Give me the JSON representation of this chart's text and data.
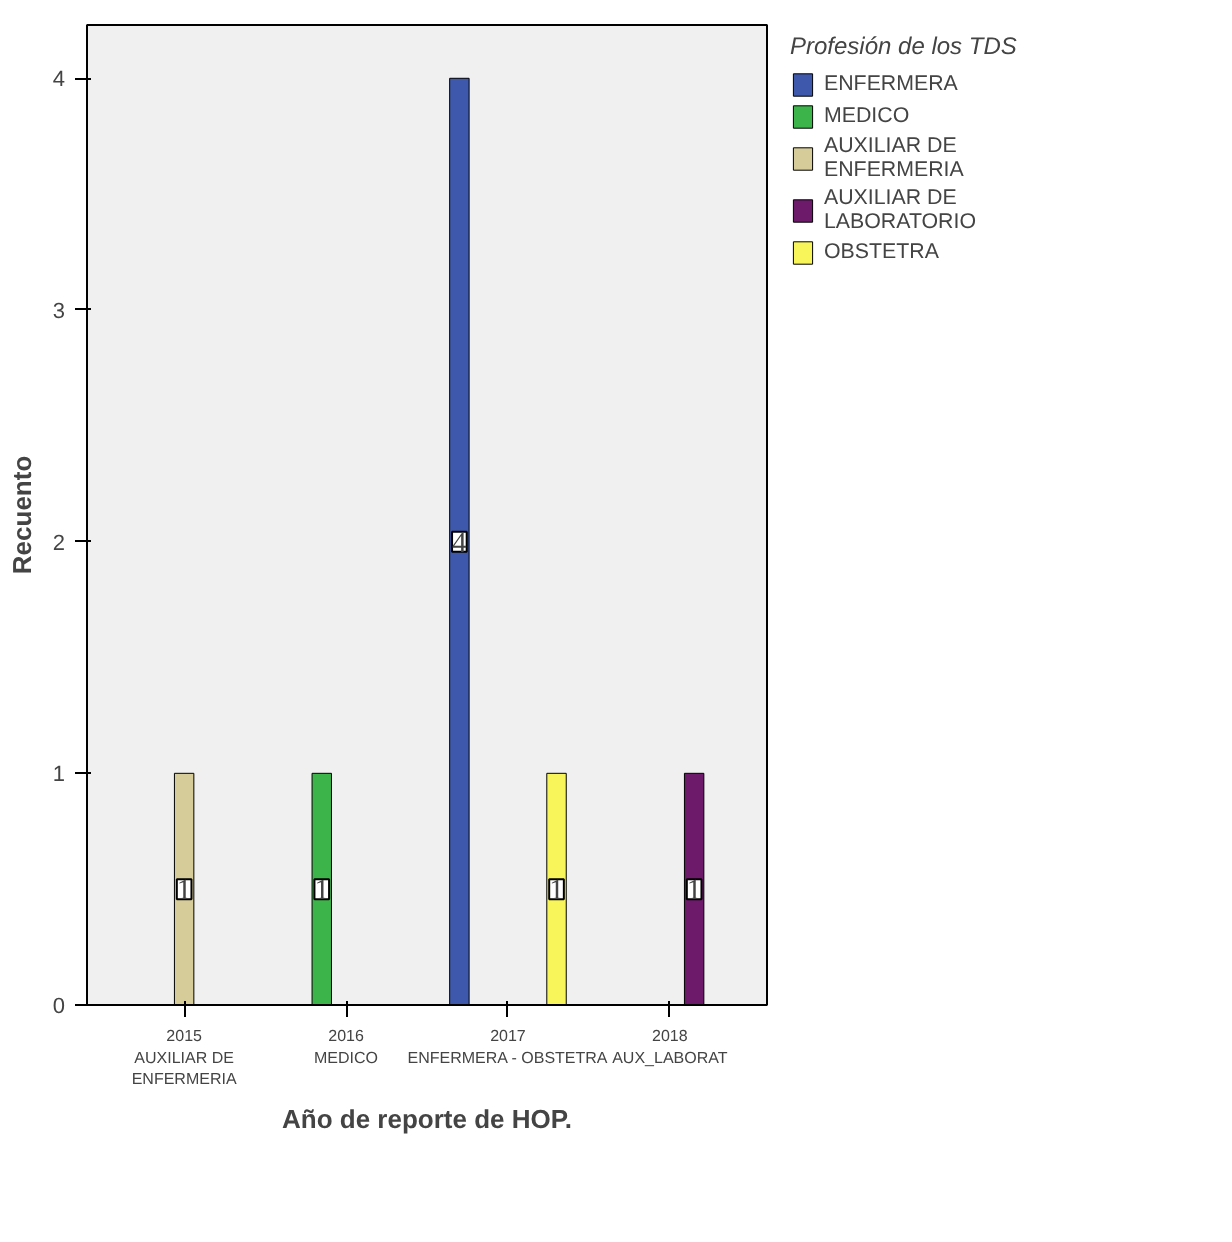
{
  "chart_data": {
    "type": "bar",
    "xlabel": "Año de reporte de HOP.",
    "ylabel": "Recuento",
    "legend_title": "Profesión de los TDS",
    "categories": [
      "2015\nAUXILIAR DE\nENFERMERIA",
      "2016\nMEDICO",
      "2017\nENFERMERA - OBSTETRA",
      "2018\nAUX_LABORAT"
    ],
    "series": [
      {
        "name": "ENFERMERA",
        "color": "#3e58ac",
        "values": [
          null,
          null,
          4,
          null
        ]
      },
      {
        "name": "MEDICO",
        "color": "#3cb44a",
        "values": [
          null,
          1,
          null,
          null
        ]
      },
      {
        "name": "AUXILIAR DE\nENFERMERIA",
        "color": "#d6cc9a",
        "values": [
          1,
          null,
          null,
          null
        ]
      },
      {
        "name": "AUXILIAR DE\nLABORATORIO",
        "color": "#6d1a6b",
        "values": [
          null,
          null,
          null,
          1
        ]
      },
      {
        "name": "OBSTETRA",
        "color": "#f8f55a",
        "values": [
          null,
          null,
          1,
          null
        ]
      }
    ],
    "ylim": [
      0,
      4.23
    ],
    "yticks": [
      0,
      1,
      2,
      3,
      4
    ],
    "grid": false,
    "legend": "right",
    "data_labels": true
  }
}
